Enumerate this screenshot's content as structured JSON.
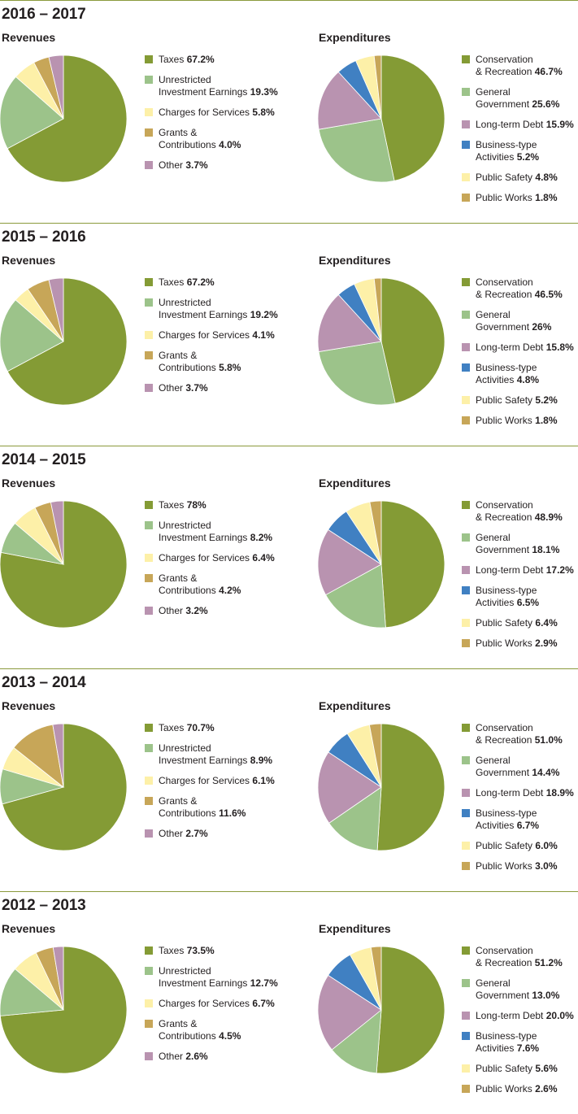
{
  "colors": {
    "green": "#849b35",
    "lightgreen": "#9cc38a",
    "yellow": "#fdf0a8",
    "gold": "#c7a658",
    "mauve": "#b993b0",
    "blue": "#4080c2",
    "rule": "#8b9a3c"
  },
  "chart_data": [
    {
      "title": "2016 – 2017",
      "revenues": {
        "subtitle": "Revenues",
        "type": "pie",
        "slices": [
          {
            "label": "Taxes",
            "value": 67.2,
            "display": "67.2%",
            "color": "#849b35"
          },
          {
            "label": "Unrestricted\nInvestment Earnings",
            "value": 19.3,
            "display": "19.3%",
            "color": "#9cc38a"
          },
          {
            "label": "Charges for Services",
            "value": 5.8,
            "display": "5.8%",
            "color": "#fdf0a8"
          },
          {
            "label": "Grants &\nContributions",
            "value": 4.0,
            "display": "4.0%",
            "color": "#c7a658"
          },
          {
            "label": "Other",
            "value": 3.7,
            "display": "3.7%",
            "color": "#b993b0"
          }
        ]
      },
      "expenditures": {
        "subtitle": "Expenditures",
        "type": "pie",
        "slices": [
          {
            "label": "Conservation\n& Recreation",
            "value": 46.7,
            "display": "46.7%",
            "color": "#849b35"
          },
          {
            "label": "General\nGovernment",
            "value": 25.6,
            "display": "25.6%",
            "color": "#9cc38a"
          },
          {
            "label": "Long-term Debt",
            "value": 15.9,
            "display": "15.9%",
            "color": "#b993b0"
          },
          {
            "label": "Business-type\nActivities",
            "value": 5.2,
            "display": "5.2%",
            "color": "#4080c2"
          },
          {
            "label": "Public Safety",
            "value": 4.8,
            "display": "4.8%",
            "color": "#fdf0a8"
          },
          {
            "label": "Public Works",
            "value": 1.8,
            "display": "1.8%",
            "color": "#c7a658"
          }
        ]
      }
    },
    {
      "title": "2015 – 2016",
      "revenues": {
        "subtitle": "Revenues",
        "type": "pie",
        "slices": [
          {
            "label": "Taxes",
            "value": 67.2,
            "display": "67.2%",
            "color": "#849b35"
          },
          {
            "label": "Unrestricted\nInvestment Earnings",
            "value": 19.2,
            "display": "19.2%",
            "color": "#9cc38a"
          },
          {
            "label": "Charges for Services",
            "value": 4.1,
            "display": "4.1%",
            "color": "#fdf0a8"
          },
          {
            "label": "Grants &\nContributions",
            "value": 5.8,
            "display": "5.8%",
            "color": "#c7a658"
          },
          {
            "label": "Other",
            "value": 3.7,
            "display": "3.7%",
            "color": "#b993b0"
          }
        ]
      },
      "expenditures": {
        "subtitle": "Expenditures",
        "type": "pie",
        "slices": [
          {
            "label": "Conservation\n& Recreation",
            "value": 46.5,
            "display": "46.5%",
            "color": "#849b35"
          },
          {
            "label": "General\nGovernment",
            "value": 26,
            "display": "26%",
            "color": "#9cc38a"
          },
          {
            "label": "Long-term Debt",
            "value": 15.8,
            "display": "15.8%",
            "color": "#b993b0"
          },
          {
            "label": "Business-type\nActivities",
            "value": 4.8,
            "display": "4.8%",
            "color": "#4080c2"
          },
          {
            "label": "Public Safety",
            "value": 5.2,
            "display": "5.2%",
            "color": "#fdf0a8"
          },
          {
            "label": "Public Works",
            "value": 1.8,
            "display": "1.8%",
            "color": "#c7a658"
          }
        ]
      }
    },
    {
      "title": "2014 – 2015",
      "revenues": {
        "subtitle": "Revenues",
        "type": "pie",
        "slices": [
          {
            "label": "Taxes",
            "value": 78,
            "display": "78%",
            "color": "#849b35"
          },
          {
            "label": "Unrestricted\nInvestment Earnings",
            "value": 8.2,
            "display": "8.2%",
            "color": "#9cc38a"
          },
          {
            "label": "Charges for Services",
            "value": 6.4,
            "display": "6.4%",
            "color": "#fdf0a8"
          },
          {
            "label": "Grants &\nContributions",
            "value": 4.2,
            "display": "4.2%",
            "color": "#c7a658"
          },
          {
            "label": "Other",
            "value": 3.2,
            "display": "3.2%",
            "color": "#b993b0"
          }
        ]
      },
      "expenditures": {
        "subtitle": "Expenditures",
        "type": "pie",
        "slices": [
          {
            "label": "Conservation\n& Recreation",
            "value": 48.9,
            "display": "48.9%",
            "color": "#849b35"
          },
          {
            "label": "General\nGovernment",
            "value": 18.1,
            "display": "18.1%",
            "color": "#9cc38a"
          },
          {
            "label": "Long-term Debt",
            "value": 17.2,
            "display": "17.2%",
            "color": "#b993b0"
          },
          {
            "label": "Business-type\nActivities",
            "value": 6.5,
            "display": "6.5%",
            "color": "#4080c2"
          },
          {
            "label": "Public Safety",
            "value": 6.4,
            "display": "6.4%",
            "color": "#fdf0a8"
          },
          {
            "label": "Public Works",
            "value": 2.9,
            "display": "2.9%",
            "color": "#c7a658"
          }
        ]
      }
    },
    {
      "title": "2013 – 2014",
      "revenues": {
        "subtitle": "Revenues",
        "type": "pie",
        "slices": [
          {
            "label": "Taxes",
            "value": 70.7,
            "display": "70.7%",
            "color": "#849b35"
          },
          {
            "label": "Unrestricted\nInvestment Earnings",
            "value": 8.9,
            "display": "8.9%",
            "color": "#9cc38a"
          },
          {
            "label": "Charges for Services",
            "value": 6.1,
            "display": "6.1%",
            "color": "#fdf0a8"
          },
          {
            "label": "Grants &\nContributions",
            "value": 11.6,
            "display": "11.6%",
            "color": "#c7a658"
          },
          {
            "label": "Other",
            "value": 2.7,
            "display": "2.7%",
            "color": "#b993b0"
          }
        ]
      },
      "expenditures": {
        "subtitle": "Expenditures",
        "type": "pie",
        "slices": [
          {
            "label": "Conservation\n& Recreation",
            "value": 51.0,
            "display": "51.0%",
            "color": "#849b35"
          },
          {
            "label": "General\nGovernment",
            "value": 14.4,
            "display": "14.4%",
            "color": "#9cc38a"
          },
          {
            "label": "Long-term Debt",
            "value": 18.9,
            "display": "18.9%",
            "color": "#b993b0"
          },
          {
            "label": "Business-type\nActivities",
            "value": 6.7,
            "display": "6.7%",
            "color": "#4080c2"
          },
          {
            "label": "Public Safety",
            "value": 6.0,
            "display": "6.0%",
            "color": "#fdf0a8"
          },
          {
            "label": "Public Works",
            "value": 3.0,
            "display": "3.0%",
            "color": "#c7a658"
          }
        ]
      }
    },
    {
      "title": "2012 – 2013",
      "revenues": {
        "subtitle": "Revenues",
        "type": "pie",
        "slices": [
          {
            "label": "Taxes",
            "value": 73.5,
            "display": "73.5%",
            "color": "#849b35"
          },
          {
            "label": "Unrestricted\nInvestment Earnings",
            "value": 12.7,
            "display": "12.7%",
            "color": "#9cc38a"
          },
          {
            "label": "Charges for Services",
            "value": 6.7,
            "display": "6.7%",
            "color": "#fdf0a8"
          },
          {
            "label": "Grants &\nContributions",
            "value": 4.5,
            "display": "4.5%",
            "color": "#c7a658"
          },
          {
            "label": "Other",
            "value": 2.6,
            "display": "2.6%",
            "color": "#b993b0"
          }
        ]
      },
      "expenditures": {
        "subtitle": "Expenditures",
        "type": "pie",
        "slices": [
          {
            "label": "Conservation\n& Recreation",
            "value": 51.2,
            "display": "51.2%",
            "color": "#849b35"
          },
          {
            "label": "General\nGovernment",
            "value": 13.0,
            "display": "13.0%",
            "color": "#9cc38a"
          },
          {
            "label": "Long-term Debt",
            "value": 20.0,
            "display": "20.0%",
            "color": "#b993b0"
          },
          {
            "label": "Business-type\nActivities",
            "value": 7.6,
            "display": "7.6%",
            "color": "#4080c2"
          },
          {
            "label": "Public Safety",
            "value": 5.6,
            "display": "5.6%",
            "color": "#fdf0a8"
          },
          {
            "label": "Public Works",
            "value": 2.6,
            "display": "2.6%",
            "color": "#c7a658"
          }
        ]
      }
    }
  ]
}
